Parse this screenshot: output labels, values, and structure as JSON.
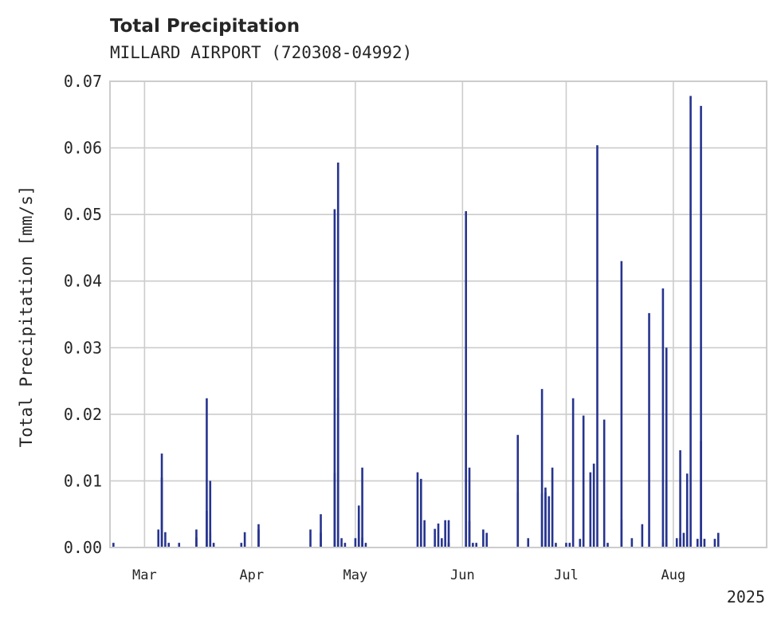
{
  "chart_data": {
    "type": "bar",
    "title": "Total Precipitation",
    "subtitle": "MILLARD AIRPORT (720308-04992)",
    "ylabel": "Total Precipitation [mm/s]",
    "xlabel": "",
    "year_label": "2025",
    "ylim": [
      0,
      0.07
    ],
    "yticks": [
      "0.00",
      "0.01",
      "0.02",
      "0.03",
      "0.04",
      "0.05",
      "0.06",
      "0.07"
    ],
    "xlim": [
      "2025-02-19",
      "2025-08-28"
    ],
    "xticks": [
      {
        "label": "Mar",
        "date": "2025-03-01"
      },
      {
        "label": "Apr",
        "date": "2025-04-01"
      },
      {
        "label": "May",
        "date": "2025-05-01"
      },
      {
        "label": "Jun",
        "date": "2025-06-01"
      },
      {
        "label": "Jul",
        "date": "2025-07-01"
      },
      {
        "label": "Aug",
        "date": "2025-08-01"
      }
    ],
    "grid": true,
    "color": "#26348f",
    "series": [
      {
        "x": [
          "2025-02-20",
          "2025-03-05",
          "2025-03-06",
          "2025-03-06",
          "2025-03-07",
          "2025-03-08",
          "2025-03-11",
          "2025-03-16",
          "2025-03-16",
          "2025-03-19",
          "2025-03-19",
          "2025-03-20",
          "2025-03-20",
          "2025-03-21",
          "2025-03-29",
          "2025-03-30",
          "2025-04-03",
          "2025-04-03",
          "2025-04-18",
          "2025-04-21",
          "2025-04-21",
          "2025-04-25",
          "2025-04-25",
          "2025-04-26",
          "2025-04-26",
          "2025-04-27",
          "2025-04-28",
          "2025-05-01",
          "2025-05-02",
          "2025-05-02",
          "2025-05-03",
          "2025-05-03",
          "2025-05-04",
          "2025-05-19",
          "2025-05-20",
          "2025-05-21",
          "2025-05-24",
          "2025-05-25",
          "2025-05-26",
          "2025-05-27",
          "2025-05-28",
          "2025-05-28",
          "2025-06-02",
          "2025-06-02",
          "2025-06-03",
          "2025-06-03",
          "2025-06-04",
          "2025-06-05",
          "2025-06-07",
          "2025-06-08",
          "2025-06-17",
          "2025-06-17",
          "2025-06-20",
          "2025-06-24",
          "2025-06-24",
          "2025-06-25",
          "2025-06-25",
          "2025-06-26",
          "2025-06-27",
          "2025-06-28",
          "2025-07-01",
          "2025-07-02",
          "2025-07-03",
          "2025-07-05",
          "2025-07-06",
          "2025-07-08",
          "2025-07-09",
          "2025-07-10",
          "2025-07-12",
          "2025-07-13",
          "2025-07-17",
          "2025-07-17",
          "2025-07-20",
          "2025-07-23",
          "2025-07-25",
          "2025-07-29",
          "2025-07-29",
          "2025-07-30",
          "2025-07-30",
          "2025-08-02",
          "2025-08-03",
          "2025-08-03",
          "2025-08-04",
          "2025-08-05",
          "2025-08-05",
          "2025-08-06",
          "2025-08-08",
          "2025-08-09",
          "2025-08-09",
          "2025-08-10",
          "2025-08-13",
          "2025-08-14"
        ],
        "values": [
          0.0007,
          0.0027,
          0.0141,
          0.0105,
          0.0023,
          0.0007,
          0.0007,
          0.0027,
          0.0015,
          0.0055,
          0.0224,
          0.01,
          0.0023,
          0.0007,
          0.0007,
          0.0023,
          0.0027,
          0.0035,
          0.0027,
          0.005,
          0.0022,
          0.0112,
          0.0508,
          0.0578,
          0.0225,
          0.0014,
          0.0007,
          0.0014,
          0.0042,
          0.0063,
          0.0015,
          0.012,
          0.0007,
          0.0113,
          0.0103,
          0.0041,
          0.0028,
          0.0036,
          0.0014,
          0.0041,
          0.0041,
          0.0007,
          0.0505,
          0.0205,
          0.012,
          0.004,
          0.0007,
          0.0007,
          0.0027,
          0.0022,
          0.0169,
          0.0083,
          0.0014,
          0.0238,
          0.0081,
          0.0083,
          0.009,
          0.0077,
          0.012,
          0.0007,
          0.0007,
          0.0007,
          0.0224,
          0.0013,
          0.0198,
          0.0113,
          0.0126,
          0.0604,
          0.0192,
          0.0007,
          0.043,
          0.0042,
          0.0014,
          0.0035,
          0.0352,
          0.0007,
          0.0389,
          0.03,
          0.01,
          0.0014,
          0.0014,
          0.0146,
          0.0022,
          0.0042,
          0.0111,
          0.0678,
          0.0013,
          0.0663,
          0.016,
          0.0013,
          0.0013,
          0.0022
        ]
      }
    ]
  }
}
